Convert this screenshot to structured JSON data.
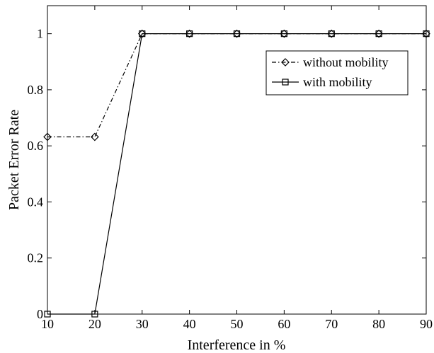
{
  "chart_data": {
    "type": "line",
    "title": "",
    "xlabel": "Interference in %",
    "ylabel": "Packet Error Rate",
    "xlim": [
      10,
      90
    ],
    "ylim": [
      0,
      1.1
    ],
    "x": [
      10,
      20,
      30,
      40,
      50,
      60,
      70,
      80,
      90
    ],
    "xticks": [
      "10",
      "20",
      "30",
      "40",
      "50",
      "60",
      "70",
      "80",
      "90"
    ],
    "yticks": [
      {
        "value": 0,
        "label": "0"
      },
      {
        "value": 0.2,
        "label": "0.2"
      },
      {
        "value": 0.4,
        "label": "0.4"
      },
      {
        "value": 0.6,
        "label": "0.6"
      },
      {
        "value": 0.8,
        "label": "0.8"
      },
      {
        "value": 1,
        "label": "1"
      }
    ],
    "grid": false,
    "legend_position": "top-right",
    "series": [
      {
        "name": "without mobility",
        "values": [
          0.632,
          0.632,
          1,
          1,
          1,
          1,
          1,
          1,
          1
        ],
        "line_style": "dash-dot",
        "marker": "diamond",
        "color": "#000000"
      },
      {
        "name": "with mobility",
        "values": [
          0,
          0,
          1,
          1,
          1,
          1,
          1,
          1,
          1
        ],
        "line_style": "solid",
        "marker": "square",
        "color": "#000000"
      }
    ]
  }
}
